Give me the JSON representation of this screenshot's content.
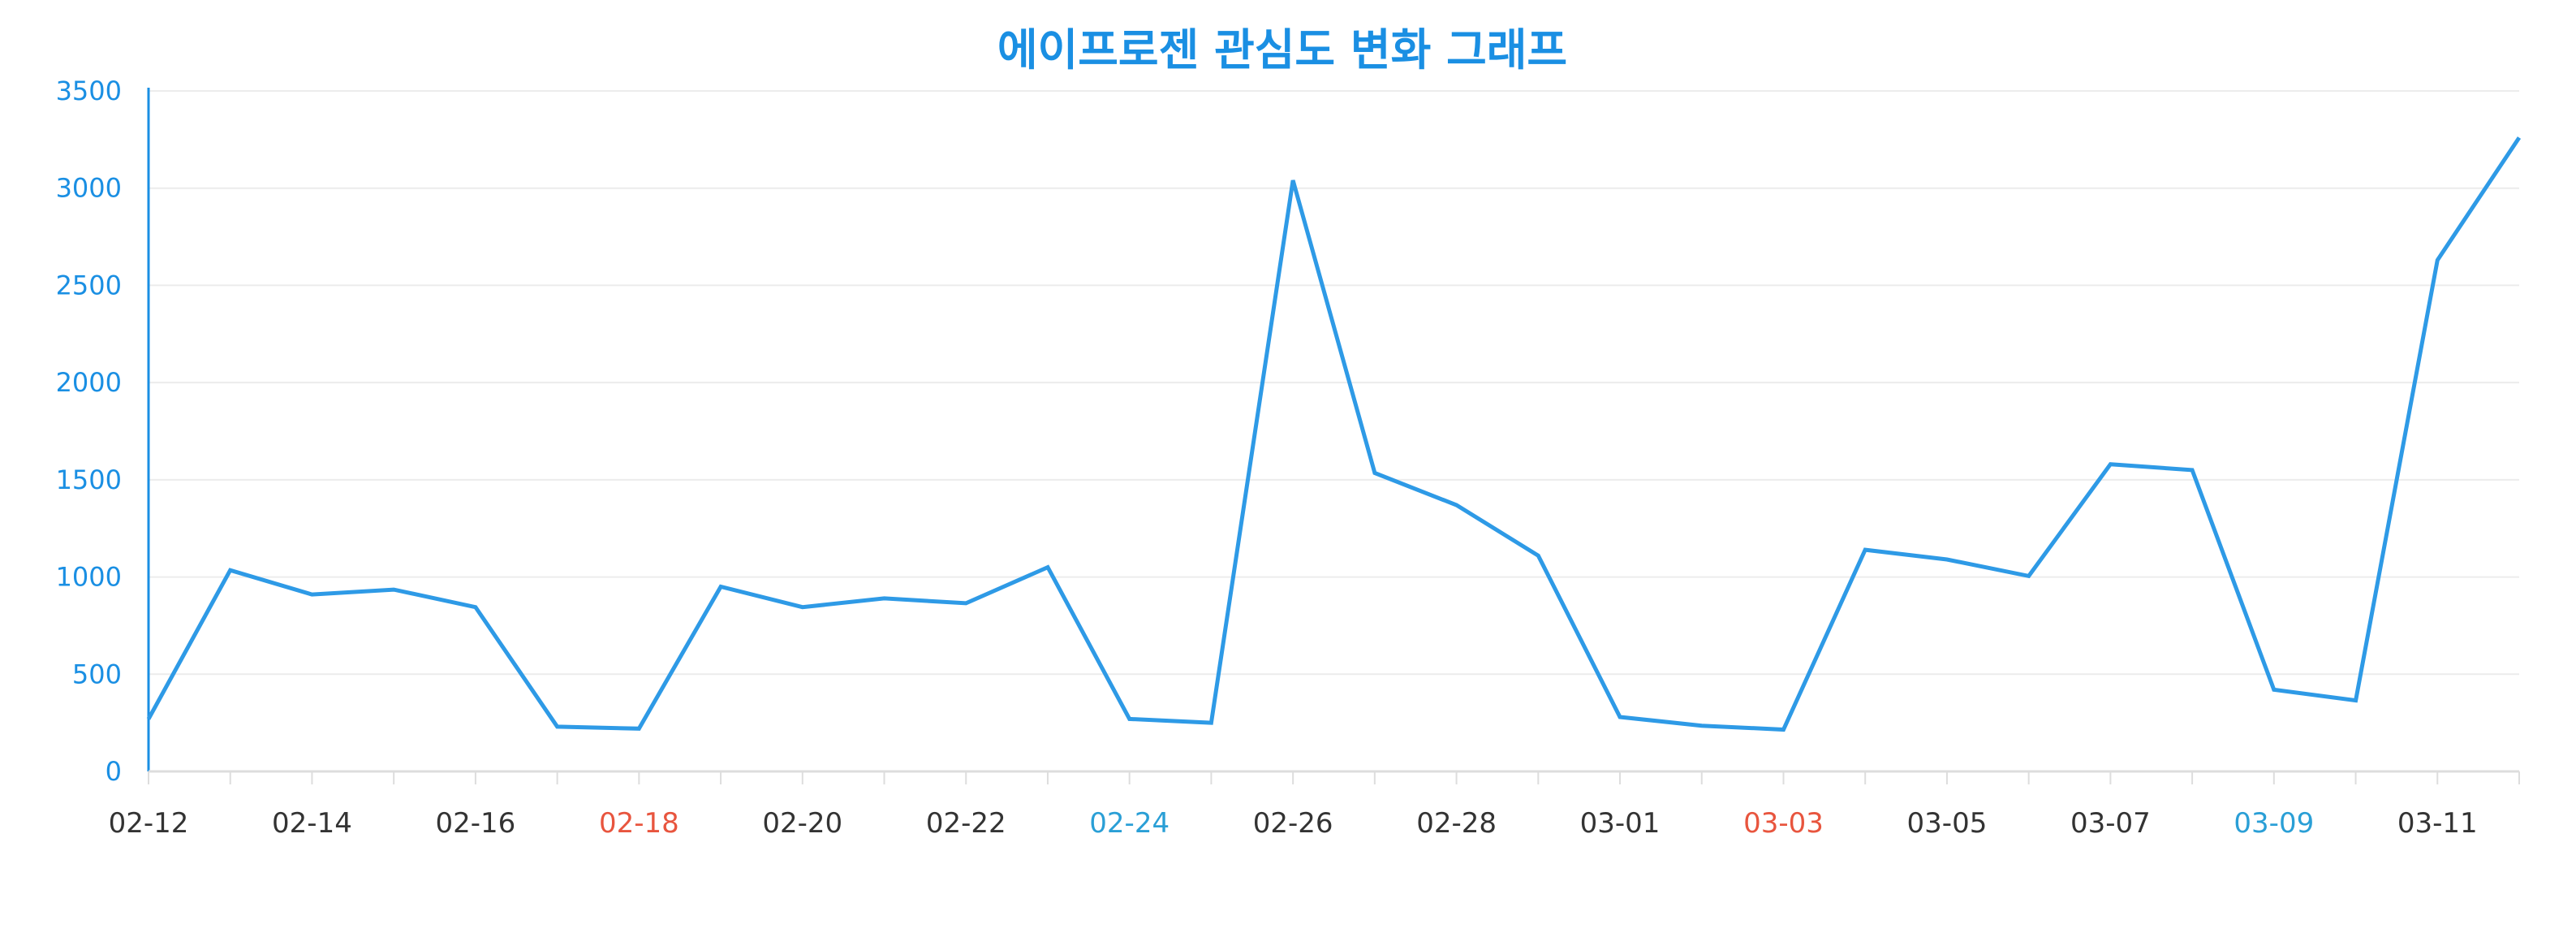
{
  "chart_data": {
    "type": "line",
    "title": "에이프로젠 관심도 변화 그래프",
    "xlabel": "",
    "ylabel": "",
    "ylim": [
      0,
      3500
    ],
    "yticks": [
      0,
      500,
      1000,
      1500,
      2000,
      2500,
      3000,
      3500
    ],
    "grid": true,
    "legend": "none",
    "x": [
      "02-12",
      "02-13",
      "02-14",
      "02-15",
      "02-16",
      "02-17",
      "02-18",
      "02-19",
      "02-20",
      "02-21",
      "02-22",
      "02-23",
      "02-24",
      "02-25",
      "02-26",
      "02-27",
      "02-28",
      "02-29",
      "03-01",
      "03-02",
      "03-03",
      "03-04",
      "03-05",
      "03-06",
      "03-07",
      "03-08",
      "03-09",
      "03-10",
      "03-11",
      "03-12"
    ],
    "x_tick_labels": [
      {
        "label": "02-12",
        "color": "#333333"
      },
      {
        "label": "02-14",
        "color": "#333333"
      },
      {
        "label": "02-16",
        "color": "#333333"
      },
      {
        "label": "02-18",
        "color": "#e8553e"
      },
      {
        "label": "02-20",
        "color": "#333333"
      },
      {
        "label": "02-22",
        "color": "#333333"
      },
      {
        "label": "02-24",
        "color": "#2a9fd6"
      },
      {
        "label": "02-26",
        "color": "#333333"
      },
      {
        "label": "02-28",
        "color": "#333333"
      },
      {
        "label": "03-01",
        "color": "#333333"
      },
      {
        "label": "03-03",
        "color": "#e8553e"
      },
      {
        "label": "03-05",
        "color": "#333333"
      },
      {
        "label": "03-07",
        "color": "#333333"
      },
      {
        "label": "03-09",
        "color": "#2a9fd6"
      },
      {
        "label": "03-11",
        "color": "#333333"
      }
    ],
    "series": [
      {
        "values": [
          270,
          1035,
          910,
          935,
          845,
          230,
          220,
          950,
          845,
          890,
          865,
          1050,
          270,
          250,
          3040,
          1535,
          1370,
          1110,
          280,
          235,
          215,
          1140,
          1090,
          1005,
          1580,
          1550,
          420,
          365,
          2630,
          3260
        ]
      }
    ],
    "colors": {
      "title": "#1a8fe3",
      "line": "#2e9ae6",
      "axis": "#1a8fe3",
      "ytick": "#1a8fe3",
      "grid": "#ececec",
      "xaxis": "#dddddd"
    }
  }
}
